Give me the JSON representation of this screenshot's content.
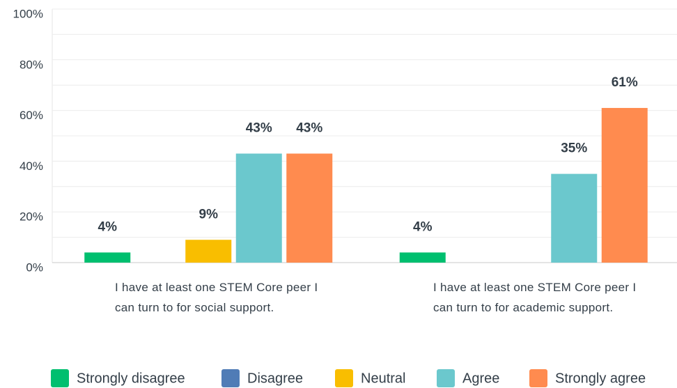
{
  "chart_data": {
    "type": "bar",
    "categories": [
      "I have at least one STEM Core peer I can turn to for social support.",
      "I have at least one STEM Core peer I can turn to for academic support."
    ],
    "series": [
      {
        "name": "Strongly disagree",
        "color": "#00bf6f",
        "values": [
          4,
          4
        ],
        "value_labels": [
          "4%",
          "4%"
        ]
      },
      {
        "name": "Disagree",
        "color": "#507cb6",
        "values": [
          0,
          0
        ],
        "value_labels": [
          null,
          null
        ]
      },
      {
        "name": "Neutral",
        "color": "#f9be00",
        "values": [
          9,
          0
        ],
        "value_labels": [
          "9%",
          null
        ]
      },
      {
        "name": "Agree",
        "color": "#6bc8cd",
        "values": [
          43,
          35
        ],
        "value_labels": [
          "43%",
          "35%"
        ]
      },
      {
        "name": "Strongly agree",
        "color": "#ff8b4f",
        "values": [
          43,
          61
        ],
        "value_labels": [
          "43%",
          "61%"
        ]
      }
    ],
    "ylim": [
      0,
      100
    ],
    "yticks": [
      {
        "value": 0,
        "label": "0%"
      },
      {
        "value": 20,
        "label": "20%"
      },
      {
        "value": 40,
        "label": "40%"
      },
      {
        "value": 60,
        "label": "60%"
      },
      {
        "value": 80,
        "label": "80%"
      },
      {
        "value": 100,
        "label": "100%"
      }
    ],
    "minor_yticks": [
      10,
      30,
      50,
      70,
      90
    ],
    "grid": true,
    "legend": "bottom"
  }
}
